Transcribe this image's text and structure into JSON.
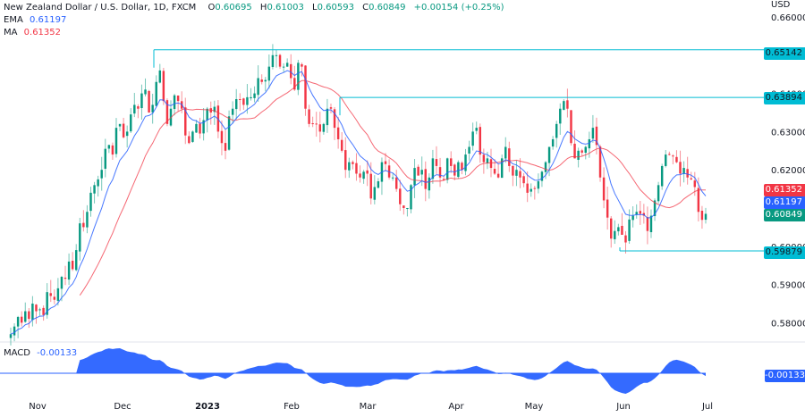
{
  "header": {
    "symbol_title": "New Zealand Dollar / U.S. Dollar, 1D, FXCM",
    "open_label": "O",
    "open": "0.60695",
    "high_label": "H",
    "high": "0.61003",
    "low_label": "L",
    "low": "0.60593",
    "close_label": "C",
    "close": "0.60849",
    "change": "+0.00154 (+0.25%)"
  },
  "indicators": {
    "ema": {
      "label": "EMA",
      "value": "0.61197",
      "color": "#2962ff"
    },
    "ma": {
      "label": "MA",
      "value": "0.61352",
      "color": "#f23645"
    },
    "macd": {
      "label": "MACD",
      "value": "-0.00133",
      "color": "#2962ff"
    }
  },
  "price_axis": {
    "currency": "USD",
    "ticks": [
      "0.66000",
      "0.65000",
      "0.64000",
      "0.63000",
      "0.62000",
      "0.61000",
      "0.60000",
      "0.59000",
      "0.58000"
    ]
  },
  "price_tags": {
    "level_high": "0.65142",
    "level_mid": "0.63894",
    "ma": "0.61352",
    "ema": "0.61197",
    "close": "0.60849",
    "level_low": "0.59879",
    "macd": "-0.00133"
  },
  "time_axis": {
    "labels": [
      "Nov",
      "Dec",
      "2023",
      "Feb",
      "Mar",
      "Apr",
      "May",
      "Jun",
      "Jul"
    ]
  },
  "colors": {
    "up": "#089981",
    "down": "#f23645",
    "ema": "#2962ff",
    "ma": "#f23645",
    "level_line": "#00bcd4",
    "macd_fill": "#2962ff"
  },
  "chart_data": {
    "type": "candlestick",
    "title": "New Zealand Dollar / U.S. Dollar, 1D, FXCM",
    "xlabel": "",
    "ylabel": "USD",
    "ylim": [
      0.576,
      0.664
    ],
    "x_range": [
      "2022-10-24",
      "2023-06-30"
    ],
    "horizontal_levels": [
      {
        "value": 0.65142,
        "from": "2022-12-13"
      },
      {
        "value": 0.63894,
        "from": "2023-02-08"
      },
      {
        "value": 0.59879,
        "from": "2023-05-31"
      }
    ],
    "series": [
      {
        "name": "EMA",
        "last": 0.61197
      },
      {
        "name": "MA",
        "last": 0.61352
      },
      {
        "name": "MACD",
        "last": -0.00133
      }
    ],
    "closes": [
      0.577,
      0.579,
      0.5815,
      0.58,
      0.583,
      0.581,
      0.585,
      0.583,
      0.5835,
      0.582,
      0.588,
      0.587,
      0.586,
      0.589,
      0.592,
      0.5915,
      0.596,
      0.594,
      0.599,
      0.606,
      0.605,
      0.609,
      0.614,
      0.616,
      0.6175,
      0.62,
      0.6255,
      0.6265,
      0.624,
      0.631,
      0.632,
      0.6285,
      0.63,
      0.6345,
      0.637,
      0.636,
      0.64,
      0.641,
      0.635,
      0.637,
      0.643,
      0.646,
      0.638,
      0.632,
      0.636,
      0.6395,
      0.638,
      0.636,
      0.629,
      0.627,
      0.63,
      0.632,
      0.6295,
      0.633,
      0.636,
      0.635,
      0.6365,
      0.63,
      0.627,
      0.625,
      0.634,
      0.636,
      0.6385,
      0.6385,
      0.637,
      0.639,
      0.639,
      0.64,
      0.644,
      0.643,
      0.6435,
      0.647,
      0.65,
      0.65,
      0.647,
      0.647,
      0.648,
      0.644,
      0.641,
      0.648,
      0.647,
      0.636,
      0.632,
      0.632,
      0.632,
      0.63,
      0.632,
      0.636,
      0.636,
      0.631,
      0.628,
      0.625,
      0.62,
      0.622,
      0.6215,
      0.619,
      0.618,
      0.6195,
      0.619,
      0.6125,
      0.6155,
      0.617,
      0.622,
      0.6215,
      0.618,
      0.618,
      0.615,
      0.611,
      0.61,
      0.61,
      0.616,
      0.6205,
      0.6185,
      0.62,
      0.615,
      0.618,
      0.623,
      0.621,
      0.618,
      0.6175,
      0.623,
      0.621,
      0.6185,
      0.622,
      0.62,
      0.624,
      0.626,
      0.63,
      0.631,
      0.624,
      0.622,
      0.623,
      0.6205,
      0.619,
      0.618,
      0.623,
      0.626,
      0.621,
      0.6185,
      0.62,
      0.618,
      0.6165,
      0.614,
      0.615,
      0.615,
      0.617,
      0.6195,
      0.622,
      0.626,
      0.628,
      0.632,
      0.636,
      0.638,
      0.636,
      0.627,
      0.623,
      0.625,
      0.6245,
      0.626,
      0.628,
      0.631,
      0.6265,
      0.618,
      0.612,
      0.6075,
      0.602,
      0.604,
      0.605,
      0.603,
      0.601,
      0.607,
      0.608,
      0.609,
      0.6085,
      0.608,
      0.604,
      0.608,
      0.612,
      0.616,
      0.621,
      0.624,
      0.624,
      0.6235,
      0.622,
      0.619,
      0.6205,
      0.618,
      0.6175,
      0.6155,
      0.609,
      0.6069,
      0.6085
    ]
  }
}
